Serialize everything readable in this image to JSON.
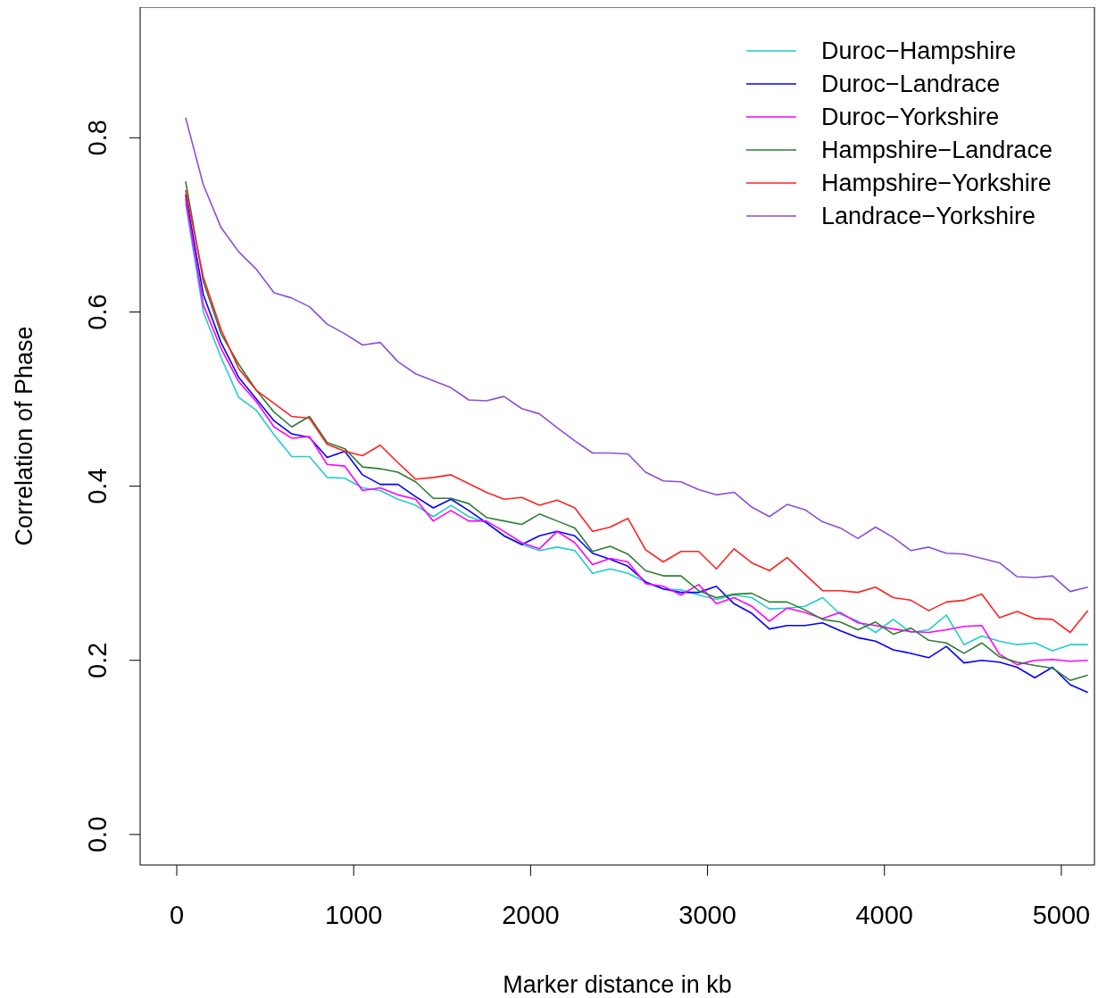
{
  "chart_data": {
    "type": "line",
    "xlabel": "Marker distance in kb",
    "ylabel": "Correlation of Phase",
    "x": [
      50,
      150,
      250,
      350,
      450,
      550,
      650,
      750,
      850,
      950,
      1050,
      1150,
      1250,
      1350,
      1450,
      1550,
      1650,
      1750,
      1850,
      1950,
      2050,
      2150,
      2250,
      2350,
      2450,
      2550,
      2650,
      2750,
      2850,
      2950,
      3050,
      3150,
      3250,
      3350,
      3450,
      3550,
      3650,
      3750,
      3850,
      3950,
      4050,
      4150,
      4250,
      4350,
      4450,
      4550,
      4650,
      4750,
      4850,
      4950,
      5050,
      5150
    ],
    "xlim": [
      -207,
      5187
    ],
    "xticks": [
      0,
      1000,
      2000,
      3000,
      4000,
      5000
    ],
    "ylim": [
      -0.035,
      0.95
    ],
    "yticks": [
      {
        "value": 0,
        "label": "0.0"
      },
      0.2,
      0.4,
      0.6,
      0.8
    ],
    "grid": false,
    "legend": "top right",
    "marker": "none",
    "line_style": "solid",
    "series": [
      {
        "name": "Duroc−Hampshire",
        "color": "#22cccc",
        "values": [
          0.725,
          0.6,
          0.548,
          0.502,
          0.487,
          0.459,
          0.434,
          0.434,
          0.41,
          0.409,
          0.398,
          0.395,
          0.385,
          0.378,
          0.365,
          0.378,
          0.365,
          0.358,
          0.343,
          0.333,
          0.326,
          0.33,
          0.326,
          0.3,
          0.305,
          0.3,
          0.29,
          0.282,
          0.281,
          0.275,
          0.27,
          0.275,
          0.272,
          0.259,
          0.26,
          0.262,
          0.272,
          0.253,
          0.245,
          0.232,
          0.247,
          0.232,
          0.235,
          0.252,
          0.218,
          0.228,
          0.222,
          0.218,
          0.22,
          0.211,
          0.218,
          0.218
        ]
      },
      {
        "name": "Duroc−Landrace",
        "color": "#0000ff",
        "values": [
          0.735,
          0.62,
          0.565,
          0.525,
          0.5,
          0.475,
          0.46,
          0.456,
          0.433,
          0.44,
          0.413,
          0.402,
          0.402,
          0.388,
          0.375,
          0.385,
          0.372,
          0.358,
          0.343,
          0.333,
          0.343,
          0.348,
          0.343,
          0.323,
          0.316,
          0.308,
          0.29,
          0.282,
          0.278,
          0.278,
          0.285,
          0.265,
          0.254,
          0.236,
          0.24,
          0.24,
          0.243,
          0.234,
          0.226,
          0.222,
          0.212,
          0.208,
          0.203,
          0.216,
          0.197,
          0.2,
          0.198,
          0.192,
          0.18,
          0.192,
          0.172,
          0.163
        ]
      },
      {
        "name": "Duroc−Yorkshire",
        "color": "#ff00ff",
        "values": [
          0.73,
          0.608,
          0.558,
          0.52,
          0.497,
          0.468,
          0.455,
          0.457,
          0.425,
          0.423,
          0.395,
          0.398,
          0.39,
          0.385,
          0.36,
          0.372,
          0.36,
          0.36,
          0.348,
          0.335,
          0.328,
          0.348,
          0.335,
          0.31,
          0.317,
          0.313,
          0.288,
          0.285,
          0.275,
          0.287,
          0.265,
          0.272,
          0.262,
          0.245,
          0.26,
          0.255,
          0.248,
          0.255,
          0.243,
          0.24,
          0.236,
          0.233,
          0.232,
          0.235,
          0.239,
          0.24,
          0.207,
          0.195,
          0.2,
          0.201,
          0.199,
          0.2
        ]
      },
      {
        "name": "Hampshire−Landrace",
        "color": "#2e7d32",
        "values": [
          0.75,
          0.635,
          0.575,
          0.54,
          0.51,
          0.485,
          0.468,
          0.48,
          0.45,
          0.443,
          0.422,
          0.42,
          0.416,
          0.405,
          0.386,
          0.386,
          0.38,
          0.364,
          0.36,
          0.356,
          0.368,
          0.36,
          0.352,
          0.325,
          0.331,
          0.322,
          0.303,
          0.297,
          0.297,
          0.28,
          0.272,
          0.276,
          0.277,
          0.267,
          0.267,
          0.258,
          0.247,
          0.244,
          0.235,
          0.244,
          0.23,
          0.237,
          0.223,
          0.22,
          0.208,
          0.22,
          0.204,
          0.198,
          0.194,
          0.191,
          0.177,
          0.183
        ]
      },
      {
        "name": "Hampshire−Yorkshire",
        "color": "#ff2222",
        "values": [
          0.74,
          0.64,
          0.58,
          0.535,
          0.51,
          0.495,
          0.48,
          0.478,
          0.448,
          0.44,
          0.435,
          0.447,
          0.427,
          0.408,
          0.41,
          0.413,
          0.403,
          0.393,
          0.385,
          0.387,
          0.378,
          0.384,
          0.375,
          0.348,
          0.353,
          0.363,
          0.327,
          0.313,
          0.325,
          0.325,
          0.305,
          0.328,
          0.312,
          0.303,
          0.318,
          0.299,
          0.28,
          0.28,
          0.278,
          0.284,
          0.272,
          0.269,
          0.257,
          0.267,
          0.269,
          0.276,
          0.249,
          0.256,
          0.248,
          0.247,
          0.232,
          0.257
        ]
      },
      {
        "name": "Landrace−Yorkshire",
        "color": "#8a4fd6",
        "values": [
          0.823,
          0.746,
          0.697,
          0.669,
          0.649,
          0.622,
          0.616,
          0.606,
          0.586,
          0.575,
          0.562,
          0.565,
          0.543,
          0.529,
          0.521,
          0.513,
          0.499,
          0.498,
          0.503,
          0.489,
          0.483,
          0.467,
          0.452,
          0.438,
          0.438,
          0.437,
          0.416,
          0.406,
          0.405,
          0.396,
          0.39,
          0.393,
          0.376,
          0.365,
          0.379,
          0.373,
          0.359,
          0.352,
          0.34,
          0.353,
          0.341,
          0.326,
          0.33,
          0.323,
          0.322,
          0.317,
          0.312,
          0.296,
          0.295,
          0.297,
          0.279,
          0.284
        ]
      }
    ]
  }
}
